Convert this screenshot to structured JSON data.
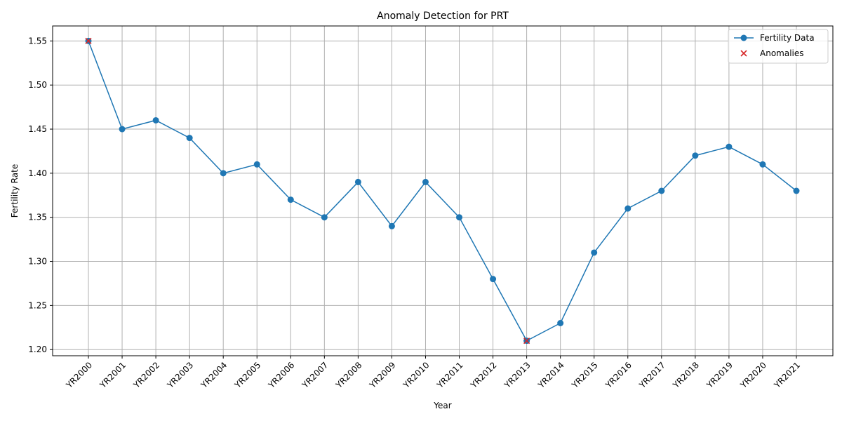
{
  "chart_data": {
    "type": "line",
    "title": "Anomaly Detection for PRT",
    "xlabel": "Year",
    "ylabel": "Fertility Rate",
    "categories": [
      "YR2000",
      "YR2001",
      "YR2002",
      "YR2003",
      "YR2004",
      "YR2005",
      "YR2006",
      "YR2007",
      "YR2008",
      "YR2009",
      "YR2010",
      "YR2011",
      "YR2012",
      "YR2013",
      "YR2014",
      "YR2015",
      "YR2016",
      "YR2017",
      "YR2018",
      "YR2019",
      "YR2020",
      "YR2021"
    ],
    "series": [
      {
        "name": "Fertility Data",
        "color": "#1f77b4",
        "marker": "circle",
        "values": [
          1.55,
          1.45,
          1.46,
          1.44,
          1.4,
          1.41,
          1.37,
          1.35,
          1.39,
          1.34,
          1.39,
          1.35,
          1.28,
          1.21,
          1.23,
          1.31,
          1.36,
          1.38,
          1.42,
          1.43,
          1.41,
          1.38
        ]
      },
      {
        "name": "Anomalies",
        "color": "#d62728",
        "marker": "x",
        "type": "scatter",
        "points": [
          {
            "x": "YR2000",
            "y": 1.55
          },
          {
            "x": "YR2013",
            "y": 1.21
          }
        ]
      }
    ],
    "yticks": [
      "1.20",
      "1.25",
      "1.30",
      "1.35",
      "1.40",
      "1.45",
      "1.50",
      "1.55"
    ],
    "ylim": [
      1.193,
      1.567
    ],
    "grid": true,
    "legend_position": "top-right"
  }
}
